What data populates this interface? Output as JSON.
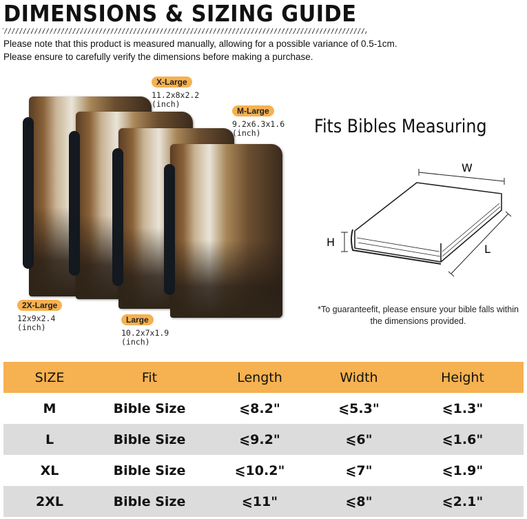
{
  "header": {
    "title": "DIMENSIONS & SIZING GUIDE",
    "note_line1": "Please note that this product is measured manually, allowing for a possible variance of 0.5-1cm.",
    "note_line2": "Please ensure to carefully verify the dimensions before making a purchase."
  },
  "sizes": [
    {
      "label": "X-Large",
      "dims": "11.2x8x2.2",
      "unit": "(inch)"
    },
    {
      "label": "M-Large",
      "dims": "9.2x6.3x1.6",
      "unit": "(inch)"
    },
    {
      "label": "2X-Large",
      "dims": "12x9x2.4",
      "unit": "(inch)"
    },
    {
      "label": "Large",
      "dims": "10.2x7x1.9",
      "unit": "(inch)"
    }
  ],
  "diagram": {
    "heading": "Fits Bibles Measuring",
    "w": "W",
    "h": "H",
    "l": "L",
    "note": "*To guaranteefit, please ensure your bible falls within the dimensions provided."
  },
  "accent": "#F6B150",
  "table": {
    "headers": [
      "SIZE",
      "Fit",
      "Length",
      "Width",
      "Height"
    ],
    "rows": [
      [
        "M",
        "Bible Size",
        "⩽8.2\"",
        "⩽5.3\"",
        "⩽1.3\""
      ],
      [
        "L",
        "Bible Size",
        "⩽9.2\"",
        "⩽6\"",
        "⩽1.6\""
      ],
      [
        "XL",
        "Bible Size",
        "⩽10.2\"",
        "⩽7\"",
        "⩽1.9\""
      ],
      [
        "2XL",
        "Bible Size",
        "⩽11\"",
        "⩽8\"",
        "⩽2.1\""
      ]
    ]
  }
}
